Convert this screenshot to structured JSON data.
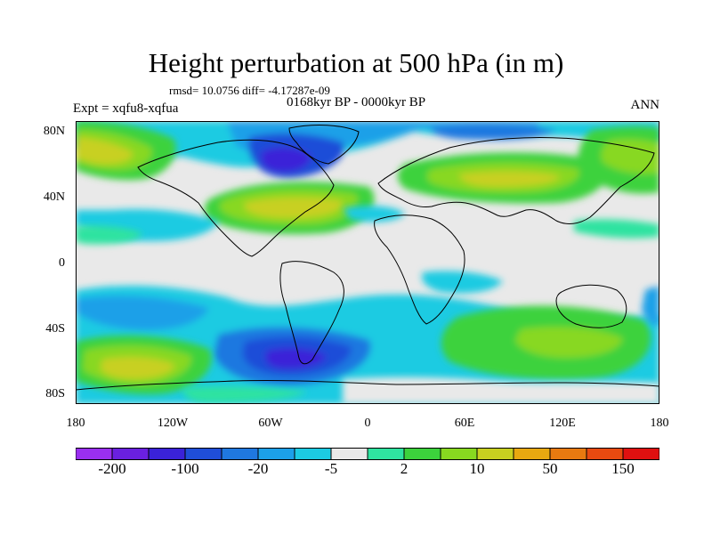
{
  "title": "Height perturbation at 500 hPa (in m)",
  "stats": "rmsd= 10.0756 diff= -4.17287e-09",
  "period": "0168kyr BP - 0000kyr BP",
  "expt": "Expt = xqfu8-xqfua",
  "season": "ANN",
  "lat_labels": [
    "80N",
    "40N",
    "0",
    "40S",
    "80S"
  ],
  "lon_labels": [
    "180",
    "120W",
    "60W",
    "0",
    "60E",
    "120E",
    "180"
  ],
  "colorbar": {
    "labels": [
      "-200",
      "-100",
      "-20",
      "-5",
      "2",
      "10",
      "50",
      "150"
    ],
    "colors": [
      "#9a2ff0",
      "#6a20e0",
      "#3a22d8",
      "#1f4ed8",
      "#1f78e0",
      "#1ca0e8",
      "#1ccbe2",
      "#e9e9e9",
      "#2fe3a0",
      "#3cd23c",
      "#88d820",
      "#c8d020",
      "#e8a810",
      "#e87a10",
      "#e84a10",
      "#e01010"
    ]
  },
  "map_colors": {
    "neutral": "#e9e9e9",
    "land_outline": "#000000"
  }
}
